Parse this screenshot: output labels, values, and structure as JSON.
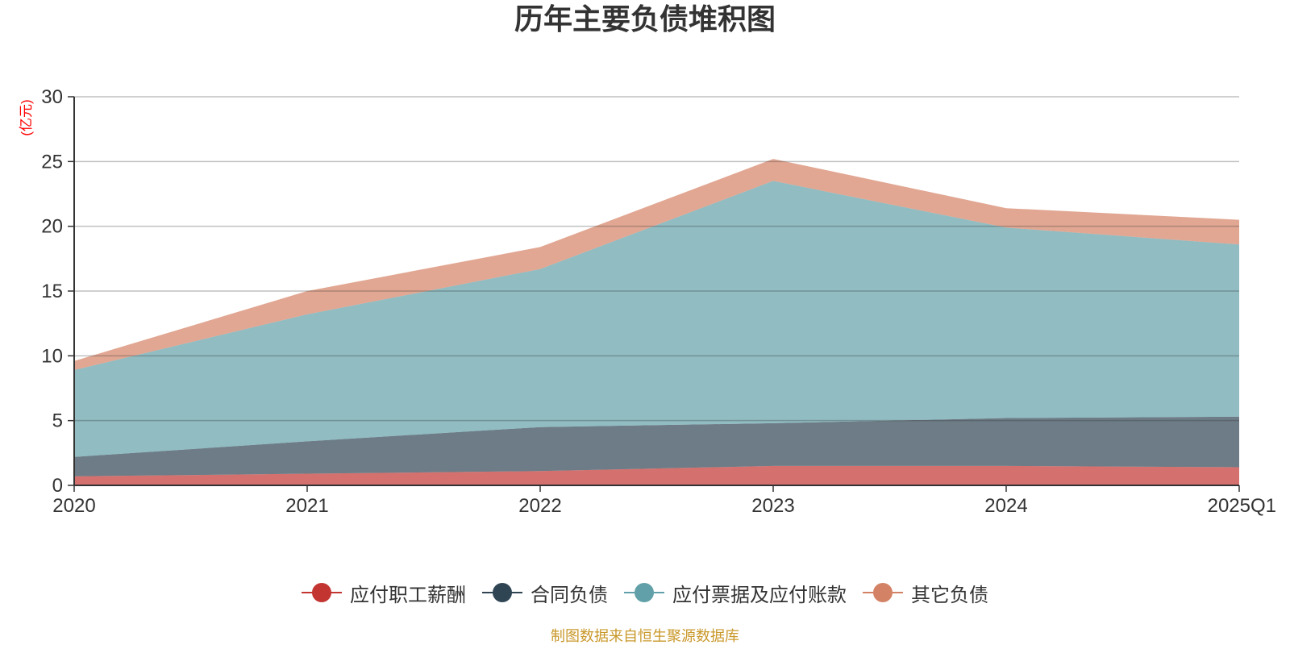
{
  "chart_data": {
    "type": "area",
    "stacked": true,
    "title": "历年主要负债堆积图",
    "ylabel": "(亿元)",
    "ylim": [
      0,
      30
    ],
    "yticks": [
      0,
      5,
      10,
      15,
      20,
      25,
      30
    ],
    "categories": [
      "2020",
      "2021",
      "2022",
      "2023",
      "2024",
      "2025Q1"
    ],
    "grid": true,
    "legend_position": "bottom",
    "series": [
      {
        "name": "应付职工薪酬",
        "color": "#c23531",
        "values": [
          0.7,
          0.9,
          1.1,
          1.5,
          1.5,
          1.4
        ]
      },
      {
        "name": "合同负债",
        "color": "#2f4554",
        "values": [
          1.5,
          2.5,
          3.4,
          3.3,
          3.7,
          3.9
        ]
      },
      {
        "name": "应付票据及应付账款",
        "color": "#61a0a8",
        "values": [
          6.7,
          9.8,
          12.2,
          18.7,
          14.7,
          13.3
        ]
      },
      {
        "name": "其它负债",
        "color": "#d48265",
        "values": [
          0.7,
          1.8,
          1.7,
          1.7,
          1.5,
          1.9
        ]
      }
    ],
    "source": "制图数据来自恒生聚源数据库"
  }
}
